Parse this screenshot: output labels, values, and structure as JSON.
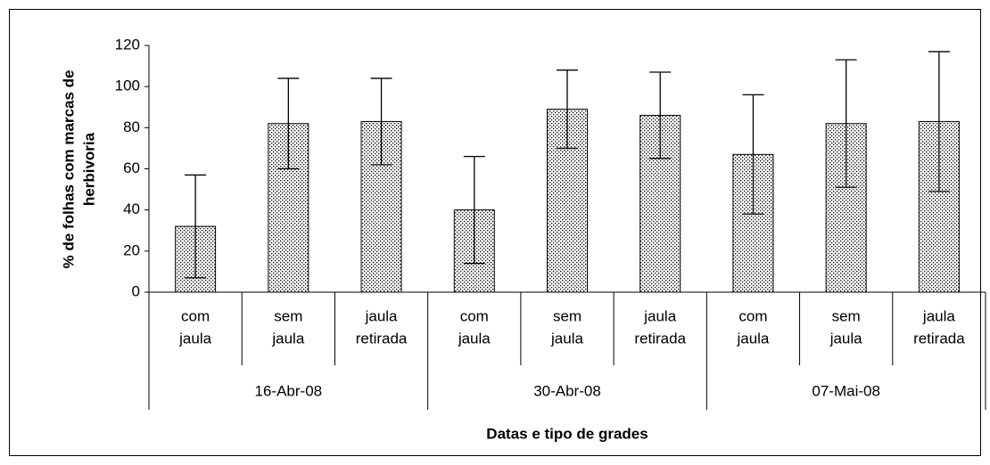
{
  "chart_data": {
    "type": "bar",
    "ylabel": [
      "% de folhas com marcas de",
      "herbivoria"
    ],
    "xlabel": "Datas e tipo de grades",
    "categories": [
      [
        "com",
        "jaula"
      ],
      [
        "sem",
        "jaula"
      ],
      [
        "jaula",
        "retirada"
      ],
      [
        "com",
        "jaula"
      ],
      [
        "sem",
        "jaula"
      ],
      [
        "jaula",
        "retirada"
      ],
      [
        "com",
        "jaula"
      ],
      [
        "sem",
        "jaula"
      ],
      [
        "jaula",
        "retirada"
      ]
    ],
    "groups": [
      "16-Abr-08",
      "30-Abr-08",
      "07-Mai-08"
    ],
    "values": [
      32,
      82,
      83,
      40,
      89,
      86,
      67,
      82,
      83
    ],
    "errors": [
      25,
      22,
      21,
      26,
      19,
      21,
      29,
      31,
      34
    ],
    "color": "#000000",
    "ylim": [
      0,
      120
    ],
    "yticks": [
      0,
      20,
      40,
      60,
      80,
      100,
      120
    ],
    "grid": false
  }
}
